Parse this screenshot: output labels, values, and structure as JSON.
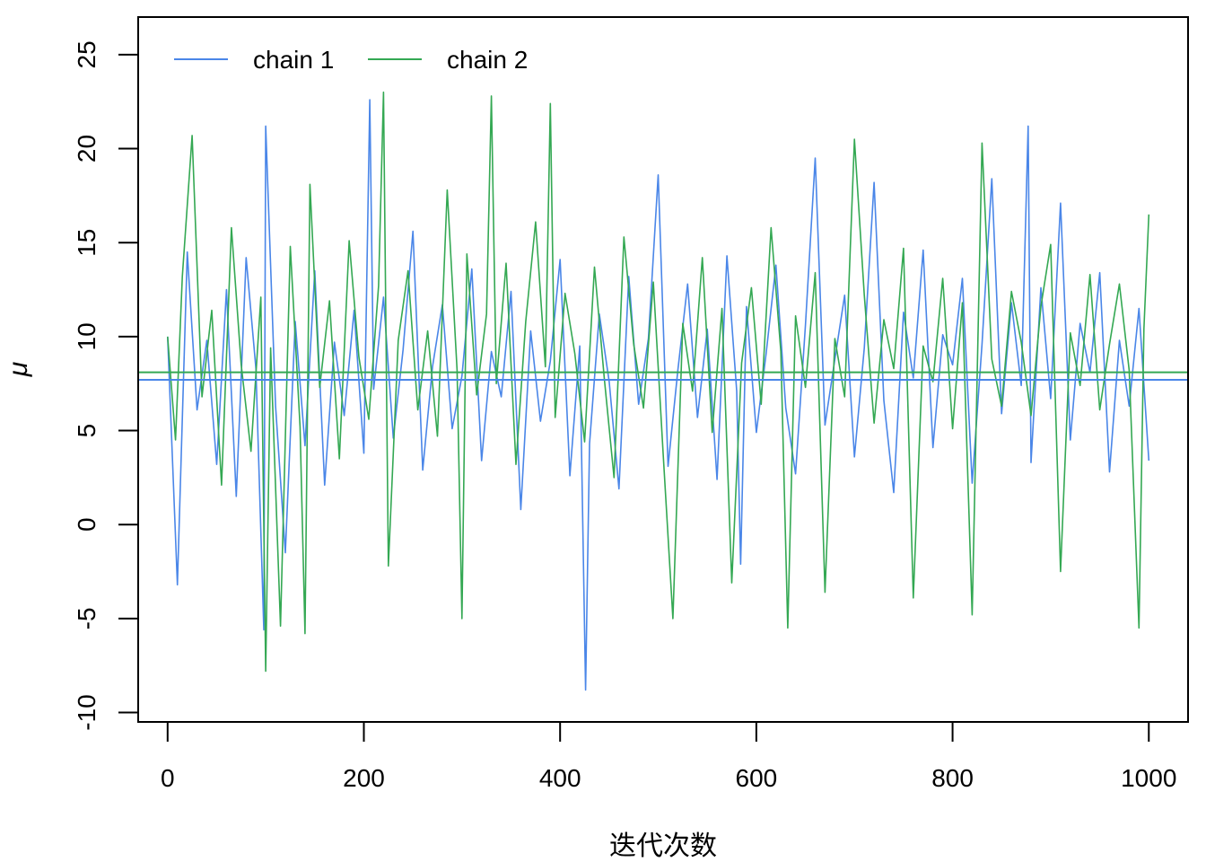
{
  "chart_data": {
    "type": "line",
    "xlabel": "迭代次数",
    "ylabel": "μ",
    "xlim": [
      -30,
      1040
    ],
    "ylim": [
      -10.5,
      27
    ],
    "x_ticks": [
      0,
      200,
      400,
      600,
      800,
      1000
    ],
    "y_ticks": [
      -10,
      -5,
      0,
      5,
      10,
      15,
      20,
      25
    ],
    "x_tick_labels": [
      "0",
      "200",
      "400",
      "600",
      "800",
      "1000"
    ],
    "y_tick_labels": [
      "-10",
      "-5",
      "0",
      "5",
      "10",
      "15",
      "20",
      "25"
    ],
    "grid": false,
    "legend_position": "top-left",
    "series": [
      {
        "name": "chain 1",
        "color": "#4a86e8",
        "mean": 7.7,
        "x": [
          0,
          10,
          20,
          30,
          40,
          50,
          60,
          70,
          80,
          90,
          98,
          100,
          110,
          120,
          130,
          140,
          150,
          160,
          170,
          180,
          190,
          200,
          206,
          210,
          220,
          230,
          240,
          250,
          260,
          270,
          280,
          290,
          300,
          310,
          320,
          330,
          340,
          350,
          360,
          370,
          380,
          390,
          400,
          410,
          420,
          426,
          430,
          440,
          450,
          460,
          470,
          480,
          490,
          500,
          510,
          520,
          530,
          540,
          550,
          560,
          570,
          580,
          584,
          590,
          600,
          610,
          620,
          630,
          640,
          650,
          660,
          670,
          680,
          690,
          700,
          710,
          720,
          730,
          740,
          750,
          760,
          770,
          780,
          790,
          800,
          810,
          820,
          830,
          840,
          850,
          860,
          870,
          877,
          880,
          890,
          900,
          910,
          920,
          930,
          940,
          950,
          960,
          970,
          980,
          990,
          1000
        ],
        "y": [
          10,
          -3.2,
          14.5,
          6.1,
          9.8,
          3.2,
          12.5,
          1.5,
          14.2,
          8.3,
          -5.6,
          21.2,
          6.3,
          -1.5,
          10.8,
          4.2,
          13.5,
          2.1,
          9.7,
          5.8,
          11.4,
          3.8,
          22.6,
          7.2,
          12.1,
          4.6,
          9.3,
          15.6,
          2.9,
          8.4,
          11.7,
          5.1,
          7.9,
          13.6,
          3.4,
          9.2,
          6.8,
          12.4,
          0.8,
          10.3,
          5.5,
          8.7,
          14.1,
          2.6,
          9.5,
          -8.8,
          4.3,
          11.2,
          7.6,
          1.9,
          13.2,
          6.4,
          9.9,
          18.6,
          3.1,
          8.2,
          12.8,
          5.7,
          10.4,
          2.4,
          14.3,
          7.1,
          -2.1,
          11.6,
          4.9,
          9.1,
          13.8,
          6.2,
          2.7,
          10.6,
          19.5,
          5.3,
          8.8,
          12.2,
          3.6,
          9.4,
          18.2,
          6.6,
          1.7,
          11.3,
          7.8,
          14.6,
          4.1,
          10.1,
          8.5,
          13.1,
          2.2,
          9.6,
          18.4,
          5.9,
          11.8,
          7.4,
          21.2,
          3.3,
          12.6,
          6.7,
          17.1,
          4.5,
          10.7,
          8.1,
          13.4,
          2.8,
          9.8,
          6.3,
          11.5,
          3.4
        ]
      },
      {
        "name": "chain 2",
        "color": "#34a853",
        "mean": 8.1,
        "x": [
          0,
          8,
          15,
          25,
          35,
          45,
          55,
          65,
          75,
          85,
          95,
          100,
          105,
          115,
          125,
          135,
          140,
          145,
          155,
          165,
          175,
          185,
          195,
          205,
          215,
          220,
          225,
          235,
          245,
          255,
          265,
          275,
          285,
          295,
          300,
          305,
          315,
          325,
          330,
          335,
          345,
          355,
          365,
          375,
          385,
          390,
          395,
          405,
          415,
          425,
          435,
          445,
          455,
          465,
          475,
          485,
          495,
          505,
          515,
          525,
          535,
          545,
          555,
          565,
          575,
          585,
          595,
          605,
          615,
          625,
          632,
          640,
          650,
          660,
          670,
          680,
          690,
          700,
          710,
          720,
          730,
          740,
          750,
          760,
          770,
          780,
          790,
          800,
          810,
          820,
          830,
          840,
          850,
          860,
          870,
          880,
          890,
          900,
          910,
          920,
          930,
          940,
          950,
          960,
          970,
          980,
          990,
          995,
          1000
        ],
        "y": [
          10,
          4.5,
          13.2,
          20.7,
          6.8,
          11.4,
          2.1,
          15.8,
          8.5,
          3.9,
          12.1,
          -7.8,
          9.4,
          -5.4,
          14.8,
          5.2,
          -5.8,
          18.1,
          7.3,
          11.9,
          3.5,
          15.1,
          8.9,
          5.6,
          12.7,
          23,
          -2.2,
          9.8,
          13.5,
          6.1,
          10.3,
          4.7,
          17.8,
          8.2,
          -5,
          14.4,
          6.9,
          11.2,
          22.8,
          7.5,
          13.9,
          3.2,
          10.8,
          16.1,
          8.4,
          22.4,
          5.7,
          12.3,
          9.1,
          4.4,
          13.7,
          7.8,
          2.5,
          15.3,
          9.6,
          6.2,
          12.9,
          3.8,
          -5,
          10.7,
          7.1,
          14.2,
          4.9,
          11.5,
          -3.1,
          8.6,
          12.6,
          6.4,
          15.8,
          9.2,
          -5.5,
          11.1,
          7.3,
          13.4,
          -3.6,
          9.9,
          6.8,
          20.5,
          12.2,
          5.4,
          10.9,
          8.3,
          14.7,
          -3.9,
          9.5,
          7.6,
          13.1,
          5.1,
          11.8,
          -4.8,
          20.3,
          8.8,
          6.3,
          12.4,
          9.7,
          5.8,
          11.6,
          14.9,
          -2.5,
          10.2,
          7.4,
          13.3,
          6.1,
          9.6,
          12.8,
          8.2,
          -5.5,
          10.4,
          16.5
        ]
      }
    ]
  }
}
